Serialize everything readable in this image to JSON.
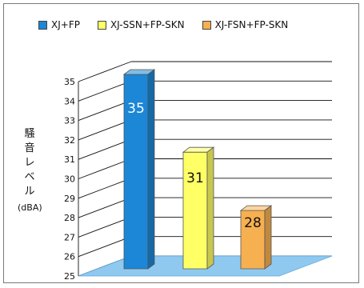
{
  "chart_data": {
    "type": "bar",
    "categories": [
      "XJ+FP",
      "XJ-SSN+FP-SKN",
      "XJ-FSN+FP-SKN"
    ],
    "values": [
      35,
      31,
      28
    ],
    "colors": [
      "#1b87d6",
      "#ffff66",
      "#f7b050"
    ],
    "ylabel_chars": [
      "騒",
      "音",
      "レ",
      "ベ",
      "ル"
    ],
    "ylabel_unit": "(dBA)",
    "ylim": [
      25,
      35
    ],
    "yticks": [
      25,
      26,
      27,
      28,
      29,
      30,
      31,
      32,
      33,
      34,
      35
    ],
    "grid": true,
    "legend_position": "top-left",
    "data_labels": true
  }
}
